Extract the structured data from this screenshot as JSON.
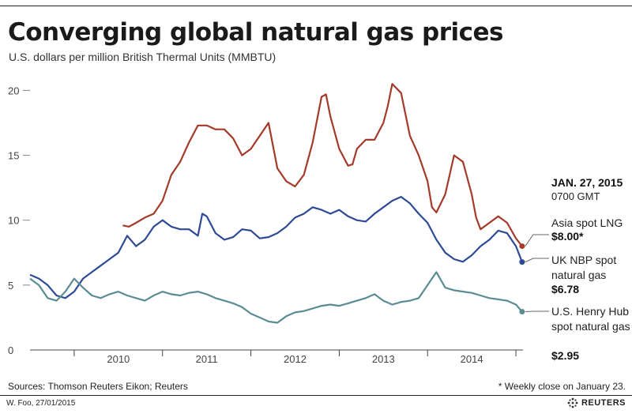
{
  "header": {
    "title": "Converging global natural gas prices",
    "subtitle": "U.S. dollars per million British Thermal Units (MMBTU)"
  },
  "annotation": {
    "date": "JAN. 27, 2015",
    "time": "0700 GMT",
    "items": [
      {
        "label": "Asia spot LNG",
        "value": "$8.00*"
      },
      {
        "label": "UK NBP spot natural gas",
        "value": "$6.78"
      },
      {
        "label": "U.S. Henry Hub spot natural gas",
        "value": "$2.95"
      }
    ]
  },
  "footer": {
    "source": "Sources: Thomson Reuters Eikon; Reuters",
    "footnote": "* Weekly close on January 23.",
    "credit": "W. Foo, 27/01/2015",
    "brand": "REUTERS"
  },
  "colors": {
    "asia": "#a33a2a",
    "uk": "#2d4a94",
    "us": "#5b8c93",
    "grid": "#bbbbbb"
  },
  "chart_data": {
    "type": "line",
    "title": "Converging global natural gas prices",
    "ylabel": "U.S. dollars per million British Thermal Units (MMBTU)",
    "ylim": [
      0,
      21
    ],
    "yticks": [
      "0",
      "5",
      "10",
      "15",
      "20"
    ],
    "xlim": [
      2009.5,
      2015.08
    ],
    "xticks": [
      "2010",
      "2011",
      "2012",
      "2013",
      "2014"
    ],
    "grid": false,
    "series": [
      {
        "name": "Asia spot LNG",
        "x": [
          2010.55,
          2010.62,
          2010.7,
          2010.8,
          2010.9,
          2011.0,
          2011.1,
          2011.2,
          2011.3,
          2011.4,
          2011.5,
          2011.6,
          2011.7,
          2011.8,
          2011.9,
          2012.0,
          2012.1,
          2012.2,
          2012.3,
          2012.4,
          2012.5,
          2012.6,
          2012.7,
          2012.8,
          2012.85,
          2012.9,
          2013.0,
          2013.1,
          2013.15,
          2013.2,
          2013.3,
          2013.4,
          2013.5,
          2013.55,
          2013.6,
          2013.7,
          2013.8,
          2013.9,
          2014.0,
          2014.05,
          2014.1,
          2014.2,
          2014.25,
          2014.3,
          2014.4,
          2014.5,
          2014.55,
          2014.6,
          2014.7,
          2014.8,
          2014.9,
          2015.0,
          2015.07
        ],
        "y": [
          9.6,
          9.5,
          9.8,
          10.2,
          10.5,
          11.5,
          13.5,
          14.5,
          16.0,
          17.3,
          17.3,
          17.0,
          17.0,
          16.3,
          15.0,
          15.5,
          16.5,
          17.5,
          14.0,
          13.0,
          12.6,
          13.5,
          16.0,
          19.5,
          19.7,
          18.0,
          15.5,
          14.2,
          14.3,
          15.5,
          16.2,
          16.2,
          17.5,
          18.8,
          20.5,
          19.8,
          16.5,
          15.0,
          13.0,
          11.0,
          10.6,
          12.0,
          13.5,
          15.0,
          14.5,
          12.0,
          10.2,
          9.3,
          9.8,
          10.3,
          9.8,
          8.6,
          8.0
        ]
      },
      {
        "name": "UK NBP spot natural gas",
        "x": [
          2009.5,
          2009.6,
          2009.7,
          2009.8,
          2009.9,
          2010.0,
          2010.1,
          2010.2,
          2010.3,
          2010.4,
          2010.5,
          2010.6,
          2010.7,
          2010.8,
          2010.9,
          2011.0,
          2011.1,
          2011.2,
          2011.3,
          2011.4,
          2011.45,
          2011.5,
          2011.6,
          2011.7,
          2011.8,
          2011.9,
          2012.0,
          2012.1,
          2012.2,
          2012.3,
          2012.4,
          2012.5,
          2012.6,
          2012.7,
          2012.8,
          2012.9,
          2013.0,
          2013.1,
          2013.2,
          2013.3,
          2013.4,
          2013.5,
          2013.6,
          2013.7,
          2013.8,
          2013.9,
          2014.0,
          2014.1,
          2014.2,
          2014.3,
          2014.4,
          2014.5,
          2014.6,
          2014.7,
          2014.8,
          2014.9,
          2015.0,
          2015.07
        ],
        "y": [
          5.8,
          5.5,
          5.0,
          4.2,
          4.0,
          4.5,
          5.5,
          6.0,
          6.5,
          7.0,
          7.5,
          8.8,
          8.0,
          8.5,
          9.5,
          10.0,
          9.5,
          9.3,
          9.3,
          8.8,
          10.5,
          10.3,
          9.0,
          8.5,
          8.7,
          9.3,
          9.2,
          8.6,
          8.7,
          9.0,
          9.5,
          10.2,
          10.5,
          11.0,
          10.8,
          10.5,
          10.8,
          10.3,
          10.0,
          9.9,
          10.5,
          11.0,
          11.5,
          11.8,
          11.3,
          10.5,
          9.8,
          8.5,
          7.5,
          7.0,
          6.8,
          7.3,
          8.0,
          8.5,
          9.2,
          9.0,
          8.0,
          6.78
        ]
      },
      {
        "name": "U.S. Henry Hub spot natural gas",
        "x": [
          2009.5,
          2009.6,
          2009.7,
          2009.8,
          2009.9,
          2010.0,
          2010.1,
          2010.2,
          2010.3,
          2010.4,
          2010.5,
          2010.6,
          2010.7,
          2010.8,
          2010.9,
          2011.0,
          2011.1,
          2011.2,
          2011.3,
          2011.4,
          2011.5,
          2011.6,
          2011.7,
          2011.8,
          2011.9,
          2012.0,
          2012.1,
          2012.2,
          2012.3,
          2012.4,
          2012.5,
          2012.6,
          2012.7,
          2012.8,
          2012.9,
          2013.0,
          2013.1,
          2013.2,
          2013.3,
          2013.4,
          2013.5,
          2013.6,
          2013.65,
          2013.7,
          2013.8,
          2013.9,
          2014.0,
          2014.1,
          2014.2,
          2014.3,
          2014.4,
          2014.5,
          2014.6,
          2014.7,
          2014.8,
          2014.9,
          2015.0,
          2015.07
        ],
        "y": [
          5.5,
          5.0,
          4.0,
          3.8,
          4.5,
          5.5,
          4.8,
          4.2,
          4.0,
          4.3,
          4.5,
          4.2,
          4.0,
          3.8,
          4.2,
          4.5,
          4.3,
          4.2,
          4.4,
          4.5,
          4.3,
          4.0,
          3.8,
          3.6,
          3.3,
          2.8,
          2.5,
          2.2,
          2.1,
          2.6,
          2.9,
          3.0,
          3.2,
          3.4,
          3.5,
          3.4,
          3.6,
          3.8,
          4.0,
          4.3,
          3.8,
          3.5,
          3.6,
          3.7,
          3.8,
          4.0,
          5.0,
          6.0,
          4.8,
          4.6,
          4.5,
          4.4,
          4.2,
          4.0,
          3.9,
          3.8,
          3.5,
          2.95
        ]
      }
    ]
  }
}
